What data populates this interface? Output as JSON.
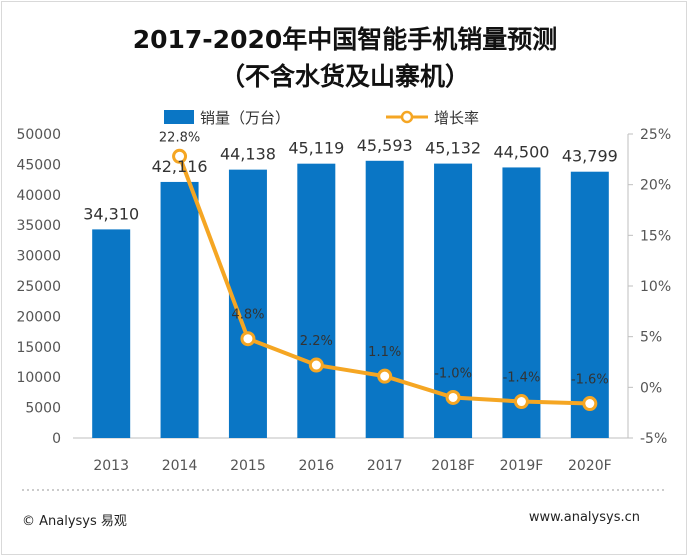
{
  "title": {
    "line1": "2017-2020年中国智能手机销量预测",
    "line2": "（不含水货及山寨机）"
  },
  "footer": {
    "left": "© Analysys 易观",
    "right": "www.analysys.cn"
  },
  "colors": {
    "bar": "#0a76c5",
    "line": "#f5a623",
    "marker_fill": "#ffffff",
    "marker_stroke": "#f5a623"
  },
  "chart_data": {
    "type": "bar",
    "categories": [
      "2013",
      "2014",
      "2015",
      "2016",
      "2017",
      "2018F",
      "2019F",
      "2020F"
    ],
    "series": [
      {
        "name": "销量（万台）",
        "type": "bar",
        "axis": "left",
        "values": [
          34310,
          42116,
          44138,
          45119,
          45593,
          45132,
          44500,
          43799
        ],
        "labels": [
          "34,310",
          "42,116",
          "44,138",
          "45,119",
          "45,593",
          "45,132",
          "44,500",
          "43,799"
        ]
      },
      {
        "name": "增长率",
        "type": "line",
        "axis": "right",
        "values": [
          null,
          22.8,
          4.8,
          2.2,
          1.1,
          -1.0,
          -1.4,
          -1.6
        ],
        "labels": [
          "",
          "22.8%",
          "4.8%",
          "2.2%",
          "1.1%",
          "-1.0%",
          "-1.4%",
          "-1.6%"
        ]
      }
    ],
    "y_left": {
      "min": 0,
      "max": 50000,
      "ticks": [
        0,
        5000,
        10000,
        15000,
        20000,
        25000,
        30000,
        35000,
        40000,
        45000,
        50000
      ],
      "tick_labels": [
        "0",
        "5000",
        "10000",
        "15000",
        "20000",
        "25000",
        "30000",
        "35000",
        "40000",
        "45000",
        "50000"
      ]
    },
    "y_right": {
      "min": -5,
      "max": 25,
      "ticks": [
        -5,
        0,
        5,
        10,
        15,
        20,
        25
      ],
      "tick_labels": [
        "-5%",
        "0%",
        "5%",
        "10%",
        "15%",
        "20%",
        "25%"
      ]
    },
    "grid": false,
    "legend": "top"
  }
}
